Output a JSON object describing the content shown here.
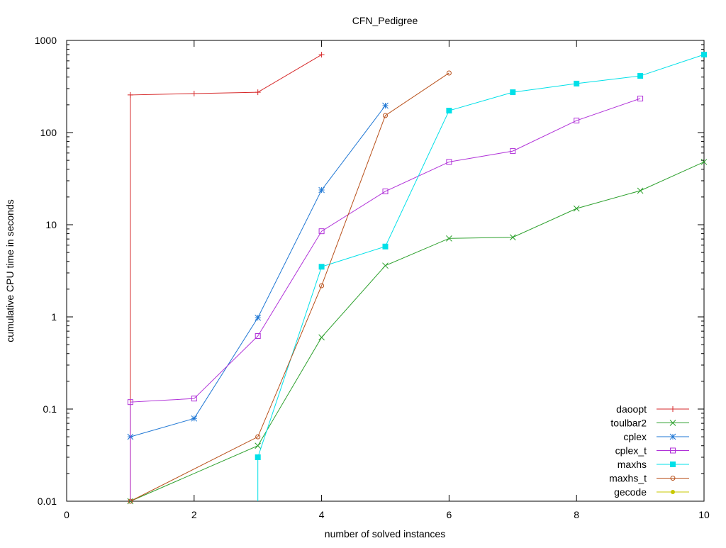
{
  "chart_data": {
    "type": "line",
    "title": "CFN_Pedigree",
    "xlabel": "number of solved instances",
    "ylabel": "cumulative CPU time in seconds",
    "xlim": [
      0,
      10
    ],
    "ylim": [
      0.01,
      1000
    ],
    "yscale": "log",
    "grid": false,
    "legend_position": "bottom-right",
    "x_ticks": [
      0,
      2,
      4,
      6,
      8,
      10
    ],
    "y_ticks": [
      0.01,
      0.1,
      1,
      10,
      100,
      1000
    ],
    "y_tick_labels": [
      "0.01",
      "0.1",
      "1",
      "10",
      "100",
      "1000"
    ],
    "series": [
      {
        "name": "daoopt",
        "color": "#d62728",
        "marker": "plus",
        "drops_below_axis": true,
        "x": [
          1,
          2,
          3,
          4
        ],
        "y": [
          256,
          265,
          274,
          700
        ]
      },
      {
        "name": "toulbar2",
        "color": "#2ca02c",
        "marker": "cross",
        "x": [
          1,
          3,
          4,
          5,
          6,
          7,
          8,
          9,
          10
        ],
        "y": [
          0.01,
          0.04,
          0.6,
          3.6,
          7.1,
          7.3,
          15,
          23.4,
          48
        ]
      },
      {
        "name": "cplex",
        "color": "#1f77d4",
        "marker": "star",
        "x": [
          1,
          2,
          3,
          4,
          5
        ],
        "y": [
          0.05,
          0.079,
          0.98,
          23.8,
          196
        ]
      },
      {
        "name": "cplex_t",
        "color": "#b030d8",
        "marker": "open-square",
        "drops_below_axis": true,
        "x": [
          1,
          2,
          3,
          4,
          5,
          6,
          7,
          8,
          9
        ],
        "y": [
          0.119,
          0.13,
          0.62,
          8.5,
          23,
          48,
          63,
          135,
          234
        ]
      },
      {
        "name": "maxhs",
        "color": "#00e0e8",
        "marker": "filled-square",
        "drops_below_axis": true,
        "x": [
          3,
          4,
          5,
          6,
          7,
          8,
          9,
          10
        ],
        "y": [
          0.03,
          3.5,
          5.8,
          173,
          274,
          340,
          412,
          702
        ]
      },
      {
        "name": "maxhs_t",
        "color": "#b8501a",
        "marker": "open-circle",
        "x": [
          1,
          3,
          4,
          5,
          6
        ],
        "y": [
          0.01,
          0.05,
          2.18,
          153,
          443
        ]
      },
      {
        "name": "gecode",
        "color": "#c8c800",
        "marker": "filled-circle",
        "x": [],
        "y": []
      }
    ]
  }
}
